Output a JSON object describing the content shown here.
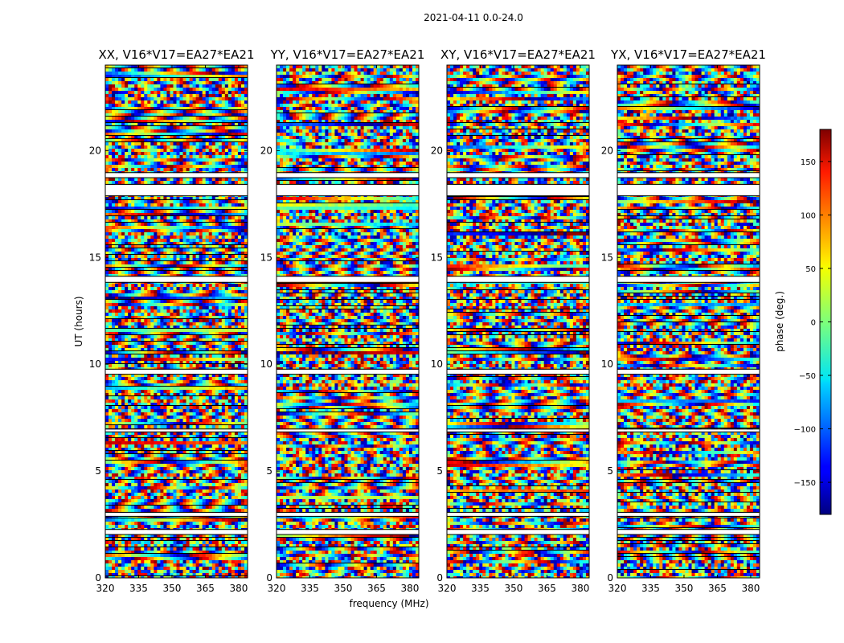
{
  "suptitle": "2021-04-11 0.0-24.0",
  "chart_data": {
    "type": "heatmap",
    "panels": [
      {
        "title": "XX, V16*V17=EA27*EA21"
      },
      {
        "title": "YY, V16*V17=EA27*EA21"
      },
      {
        "title": "XY, V16*V17=EA27*EA21"
      },
      {
        "title": "YX, V16*V17=EA27*EA21"
      }
    ],
    "xlabel": "frequency (MHz)",
    "ylabel": "UT (hours)",
    "xlim": [
      320,
      384
    ],
    "ylim": [
      0,
      24
    ],
    "xticks": [
      "320",
      "335",
      "350",
      "365",
      "380"
    ],
    "xtick_values": [
      320,
      335,
      350,
      365,
      380
    ],
    "yticks": [
      "0",
      "5",
      "10",
      "15",
      "20"
    ],
    "ytick_values": [
      0,
      5,
      10,
      15,
      20
    ],
    "flagged_gaps_hours": [
      [
        2.05,
        2.25
      ],
      [
        2.9,
        3.05
      ],
      [
        6.85,
        6.95
      ],
      [
        9.55,
        9.75
      ],
      [
        13.85,
        14.1
      ],
      [
        17.9,
        18.4
      ],
      [
        18.75,
        18.95
      ]
    ],
    "colorbar": {
      "label": "phase (deg.)",
      "range": [
        -180,
        180
      ],
      "ticks": [
        "150",
        "100",
        "50",
        "0",
        "−50",
        "−100",
        "−150"
      ],
      "tick_values": [
        150,
        100,
        50,
        0,
        -50,
        -100,
        -150
      ],
      "colormap": "jet"
    }
  }
}
